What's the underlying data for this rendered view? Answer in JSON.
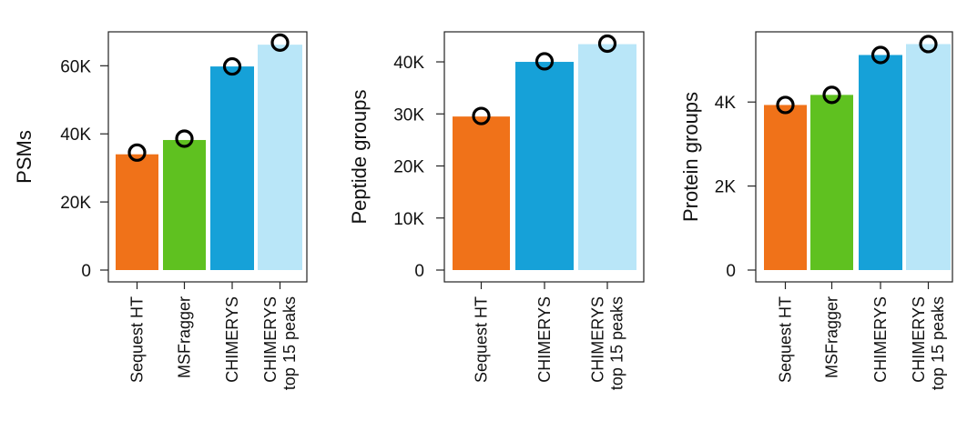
{
  "panel_letter": "",
  "colors": {
    "sequest": "#f07219",
    "msfragger": "#5fc120",
    "chimerys": "#16a1d8",
    "chimerys_top15": "#b9e6f8",
    "axis": "#222222",
    "marker_stroke": "#000000"
  },
  "chart_data": [
    {
      "type": "bar",
      "title": "",
      "ylabel": "PSMs",
      "xlabel": "",
      "ylim": [
        0,
        66500
      ],
      "yticks": [
        0,
        20000,
        40000,
        60000
      ],
      "ytick_labels": [
        "0",
        "20K",
        "40K",
        "60K"
      ],
      "categories": [
        {
          "lines": [
            "Sequest HT"
          ],
          "color_key": "sequest"
        },
        {
          "lines": [
            "MSFragger"
          ],
          "color_key": "msfragger"
        },
        {
          "lines": [
            "CHIMERYS"
          ],
          "color_key": "chimerys"
        },
        {
          "lines": [
            "CHIMERYS",
            "top 15 peaks"
          ],
          "color_key": "chimerys_top15"
        }
      ],
      "values": [
        34000,
        38200,
        59800,
        66200
      ],
      "markers": [
        34500,
        38600,
        59800,
        66800
      ]
    },
    {
      "type": "bar",
      "title": "",
      "ylabel": "Peptide groups",
      "xlabel": "",
      "ylim": [
        0,
        43500
      ],
      "yticks": [
        0,
        10000,
        20000,
        30000,
        40000
      ],
      "ytick_labels": [
        "0",
        "10K",
        "20K",
        "30K",
        "40K"
      ],
      "categories": [
        {
          "lines": [
            "Sequest HT"
          ],
          "color_key": "sequest"
        },
        {
          "lines": [
            "CHIMERYS"
          ],
          "color_key": "chimerys"
        },
        {
          "lines": [
            "CHIMERYS",
            "top 15 peaks"
          ],
          "color_key": "chimerys_top15"
        }
      ],
      "values": [
        29500,
        40000,
        43400
      ],
      "markers": [
        29600,
        40100,
        43500
      ]
    },
    {
      "type": "bar",
      "title": "",
      "ylabel": "Protein groups",
      "xlabel": "",
      "ylim": [
        0,
        5390
      ],
      "yticks": [
        0,
        2000,
        4000
      ],
      "ytick_labels": [
        "0",
        "2K",
        "4K"
      ],
      "categories": [
        {
          "lines": [
            "Sequest HT"
          ],
          "color_key": "sequest"
        },
        {
          "lines": [
            "MSFragger"
          ],
          "color_key": "msfragger"
        },
        {
          "lines": [
            "CHIMERYS"
          ],
          "color_key": "chimerys"
        },
        {
          "lines": [
            "CHIMERYS",
            "top 15 peaks"
          ],
          "color_key": "chimerys_top15"
        }
      ],
      "values": [
        3930,
        4170,
        5120,
        5380
      ],
      "markers": [
        3930,
        4170,
        5120,
        5380
      ]
    }
  ]
}
